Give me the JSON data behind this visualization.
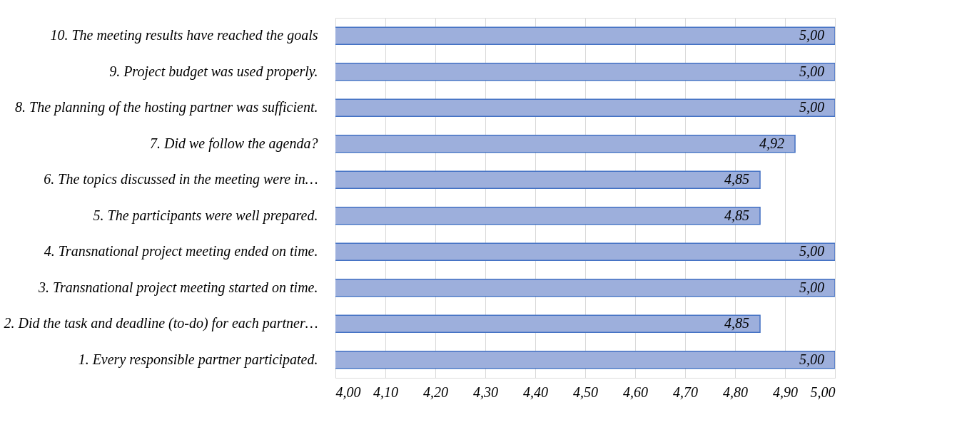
{
  "chart_data": {
    "type": "bar",
    "orientation": "horizontal",
    "categories": [
      "10. The meeting results have reached the goals",
      "9. Project budget was  used properly.",
      "8. The planning of the hosting partner was sufficient.",
      "7. Did we follow the agenda?",
      "6. The topics discussed in the meeting were in…",
      "5. The participants were well prepared.",
      "4. Transnational project meeting ended on time.",
      "3. Transnational project meeting started on time.",
      "2. Did the task and deadline (to-do) for each partner…",
      "1. Every responsible partner participated."
    ],
    "values": [
      5.0,
      5.0,
      5.0,
      4.92,
      4.85,
      4.85,
      5.0,
      5.0,
      4.85,
      5.0
    ],
    "value_labels": [
      "5,00",
      "5,00",
      "5,00",
      "4,92",
      "4,85",
      "4,85",
      "5,00",
      "5,00",
      "4,85",
      "5,00"
    ],
    "color": "#9dafdc",
    "xlim": [
      4.0,
      5.0
    ],
    "xticks": [
      {
        "value": 4.0,
        "label": "4,00"
      },
      {
        "value": 4.1,
        "label": "4,10"
      },
      {
        "value": 4.2,
        "label": "4,20"
      },
      {
        "value": 4.3,
        "label": "4,30"
      },
      {
        "value": 4.4,
        "label": "4,40"
      },
      {
        "value": 4.5,
        "label": "4,50"
      },
      {
        "value": 4.6,
        "label": "4,60"
      },
      {
        "value": 4.7,
        "label": "4,70"
      },
      {
        "value": 4.8,
        "label": "4,80"
      },
      {
        "value": 4.9,
        "label": "4,90"
      },
      {
        "value": 5.0,
        "label": "5,00"
      }
    ],
    "grid": "x"
  }
}
